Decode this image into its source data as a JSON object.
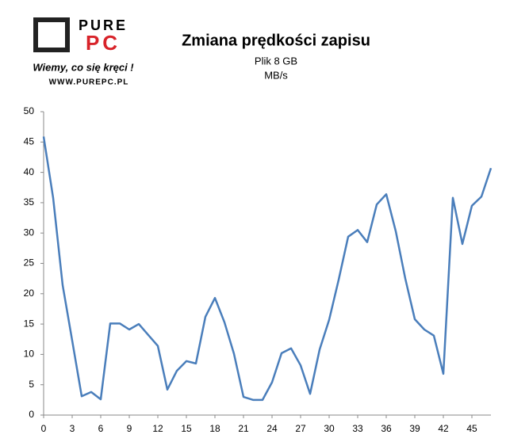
{
  "logo": {
    "brand_top": "PURE",
    "brand_bottom": "PC",
    "slogan": "Wiemy, co się kręci !",
    "url": "WWW.PUREPC.PL"
  },
  "chart_data": {
    "type": "line",
    "title": "Zmiana prędkości zapisu",
    "subtitle": "Plik 8 GB",
    "unit": "MB/s",
    "x": [
      0,
      1,
      2,
      3,
      4,
      5,
      6,
      7,
      8,
      9,
      10,
      11,
      12,
      13,
      14,
      15,
      16,
      17,
      18,
      19,
      20,
      21,
      22,
      23,
      24,
      25,
      26,
      27,
      28,
      29,
      30,
      31,
      32,
      33,
      34,
      35,
      36,
      37,
      38,
      39,
      40,
      41,
      42,
      43,
      44,
      45,
      46,
      47
    ],
    "series": [
      {
        "name": "MB/s",
        "color": "#4a7ebb",
        "values": [
          45.9,
          35.8,
          21.4,
          12.3,
          3.1,
          3.8,
          2.6,
          15.1,
          15.1,
          14.1,
          15,
          13.2,
          11.4,
          4.2,
          7.3,
          8.9,
          8.5,
          16.2,
          19.3,
          15.3,
          10.1,
          3,
          2.5,
          2.5,
          5.4,
          10.2,
          11,
          8.2,
          3.5,
          10.8,
          15.7,
          22.3,
          29.4,
          30.5,
          28.5,
          34.7,
          36.4,
          30.3,
          22.5,
          15.8,
          14.1,
          13.1,
          6.8,
          35.8,
          28.2,
          34.5,
          36,
          40.7
        ]
      }
    ],
    "xlim": [
      0,
      47
    ],
    "xticks": [
      0,
      3,
      6,
      9,
      12,
      15,
      18,
      21,
      24,
      27,
      30,
      33,
      36,
      39,
      42,
      45
    ],
    "ylim": [
      0,
      50
    ],
    "yticks": [
      0,
      5,
      10,
      15,
      20,
      25,
      30,
      35,
      40,
      45,
      50
    ],
    "grid": false
  }
}
